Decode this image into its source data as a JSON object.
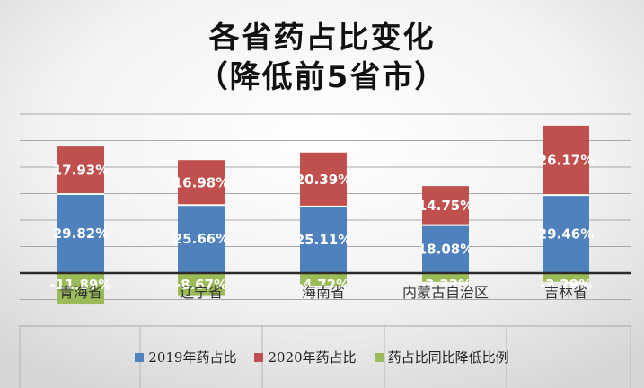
{
  "chart_data": {
    "type": "bar",
    "stacked": true,
    "title": "各省药占比变化",
    "subtitle": "（降低前5省市）",
    "categories": [
      "青海省",
      "辽宁省",
      "海南省",
      "内蒙古自治区",
      "吉林省"
    ],
    "series": [
      {
        "name": "2019年药占比",
        "color": "#4f81bd",
        "values": [
          29.82,
          25.66,
          25.11,
          18.08,
          29.46
        ],
        "labels": [
          "29.82%",
          "25.66%",
          "25.11%",
          "18.08%",
          "29.46%"
        ]
      },
      {
        "name": "2020年药占比",
        "color": "#c0504d",
        "values": [
          17.93,
          16.98,
          20.39,
          14.75,
          26.17
        ],
        "labels": [
          "17.93%",
          "16.98%",
          "20.39%",
          "14.75%",
          "26.17%"
        ]
      },
      {
        "name": "药占比同比降低比例",
        "color": "#9bbb59",
        "values": [
          -11.89,
          -8.67,
          -4.72,
          -3.33,
          -3.29
        ],
        "labels": [
          "-11.89%",
          "-8.67%",
          "-4.72%",
          "-3.33%",
          "-3.29%"
        ]
      }
    ],
    "legend_position": "bottom",
    "grid": true
  }
}
